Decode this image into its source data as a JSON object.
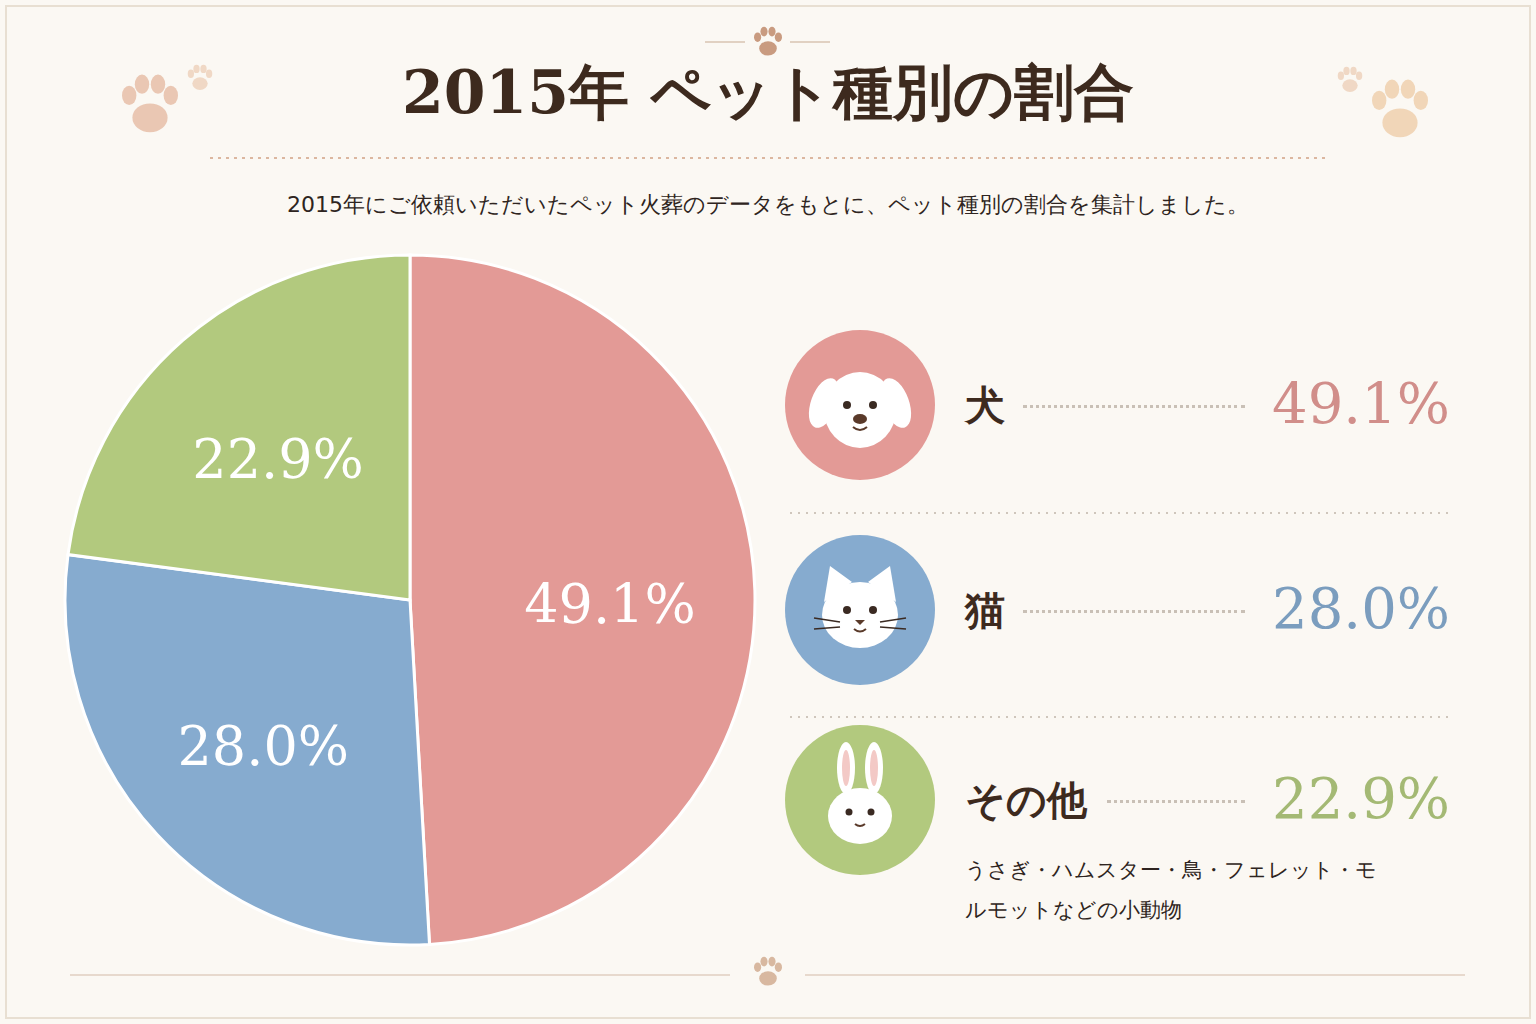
{
  "chart_data": {
    "type": "pie",
    "title": "2015年 ペット種別の割合",
    "subtitle": "2015年にご依頼いただいたペット火葬のデータをもとに、ペット種別の割合を集計しました。",
    "categories": [
      "犬",
      "猫",
      "その他"
    ],
    "values": [
      49.1,
      28.0,
      22.9
    ],
    "value_labels": [
      "49.1%",
      "28.0%",
      "22.9%"
    ],
    "colors": [
      "#e39a96",
      "#86abcf",
      "#b2c97e"
    ],
    "data_labels": true,
    "legend": "right",
    "annotation": "うさぎ・ハムスター・鳥・フェレット・モルモットなどの小動物"
  }
}
